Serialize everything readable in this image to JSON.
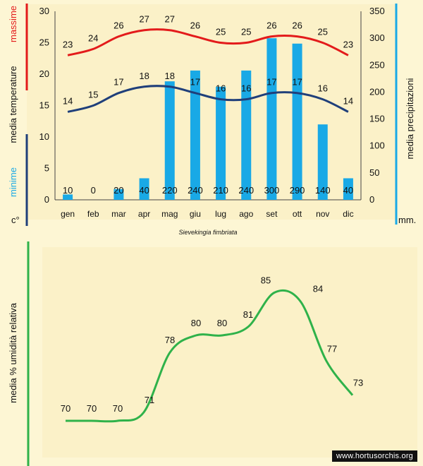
{
  "colors": {
    "background": "#fdf6d4",
    "max_temp": "#e31b1b",
    "min_temp": "#1f3f7a",
    "precipitation": "#19a9e6",
    "humidity": "#2fb24a",
    "text": "#111111"
  },
  "left_axis_labels": {
    "massime": "massime",
    "media_temperature": "media  temperature",
    "minime": "minime",
    "unit": "c°"
  },
  "right_axis_labels": {
    "media_precipitazioni": "media  precipitazioni",
    "unit": "mm."
  },
  "species_caption": "Sievekingia fimbriata",
  "humidity_axis_label": "media %  umidità relativa",
  "watermark": "www.hortusorchis.org",
  "chart_data": [
    {
      "type": "bar",
      "title": "",
      "categories": [
        "gen",
        "feb",
        "mar",
        "apr",
        "mag",
        "giu",
        "lug",
        "ago",
        "set",
        "ott",
        "nov",
        "dic"
      ],
      "left_axis": {
        "ticks": [
          0,
          5,
          10,
          15,
          20,
          25,
          30
        ],
        "ylim": [
          0,
          30
        ]
      },
      "right_axis": {
        "ticks": [
          0,
          50,
          100,
          150,
          200,
          250,
          300,
          350
        ],
        "ylim": [
          0,
          350
        ]
      },
      "series": [
        {
          "name": "massime",
          "type": "line",
          "axis": "left",
          "values": [
            23,
            24,
            26,
            27,
            27,
            26,
            25,
            25,
            26,
            26,
            25,
            23
          ]
        },
        {
          "name": "minime",
          "type": "line",
          "axis": "left",
          "values": [
            14,
            15,
            17,
            18,
            18,
            17,
            16,
            16,
            17,
            17,
            16,
            14
          ]
        },
        {
          "name": "precipitazioni",
          "type": "bar",
          "axis": "right",
          "values": [
            10,
            0,
            20,
            40,
            220,
            240,
            210,
            240,
            300,
            290,
            140,
            40
          ]
        }
      ],
      "grid": false,
      "legend": "none"
    },
    {
      "type": "line",
      "title": "",
      "ylabel": "media %  umidità relativa",
      "categories": [
        "gen",
        "feb",
        "mar",
        "apr",
        "mag",
        "giu",
        "lug",
        "ago",
        "set",
        "ott",
        "nov",
        "dic"
      ],
      "series": [
        {
          "name": "umidità relativa",
          "values": [
            70,
            70,
            70,
            71,
            78,
            80,
            80,
            81,
            85,
            84,
            77,
            73
          ]
        }
      ],
      "grid": false,
      "legend": "none"
    }
  ]
}
